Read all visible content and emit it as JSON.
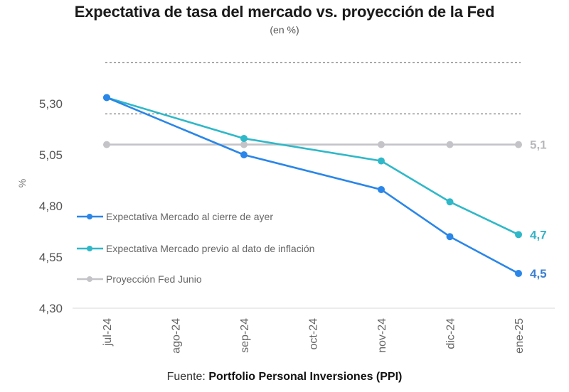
{
  "chart_data": {
    "type": "line",
    "title": "Expectativa de tasa del mercado vs. proyección de la Fed",
    "subtitle": "(en %)",
    "xlabel": "",
    "ylabel": "%",
    "categories": [
      "jul-24",
      "ago-24",
      "sep-24",
      "oct-24",
      "nov-24",
      "dic-24",
      "ene-25"
    ],
    "yticks": [
      "5,30",
      "5,05",
      "4,80",
      "4,55",
      "4,30"
    ],
    "ytick_values": [
      5.3,
      5.05,
      4.8,
      4.55,
      4.3
    ],
    "ylim": [
      4.3,
      5.55
    ],
    "grid": false,
    "reference_lines": [
      {
        "value": 5.5,
        "style": "dotted"
      },
      {
        "value": 5.25,
        "style": "dotted"
      }
    ],
    "legend_position": "left-middle",
    "series": [
      {
        "name": "Expectativa Mercado al cierre de ayer",
        "color": "#2a86e8",
        "x": [
          "jul-24",
          "sep-24",
          "nov-24",
          "dic-24",
          "ene-25"
        ],
        "values": [
          5.33,
          5.05,
          4.88,
          4.65,
          4.47
        ],
        "end_label": "4,5"
      },
      {
        "name": "Expectativa Mercado previo al dato de inflación",
        "color": "#2fb8c8",
        "x": [
          "jul-24",
          "sep-24",
          "nov-24",
          "dic-24",
          "ene-25"
        ],
        "values": [
          5.33,
          5.13,
          5.02,
          4.82,
          4.66
        ],
        "end_label": "4,7"
      },
      {
        "name": "Proyección Fed Junio",
        "color": "#c4c4c8",
        "x": [
          "jul-24",
          "sep-24",
          "nov-24",
          "dic-24",
          "ene-25"
        ],
        "values": [
          5.1,
          5.1,
          5.1,
          5.1,
          5.1
        ],
        "end_label": "5,1"
      }
    ],
    "end_label_colors": [
      "#3a7fd0",
      "#35b3c6",
      "#b8b8bc"
    ]
  },
  "source": {
    "prefix": "Fuente: ",
    "name": "Portfolio Personal Inversiones (PPI)"
  }
}
